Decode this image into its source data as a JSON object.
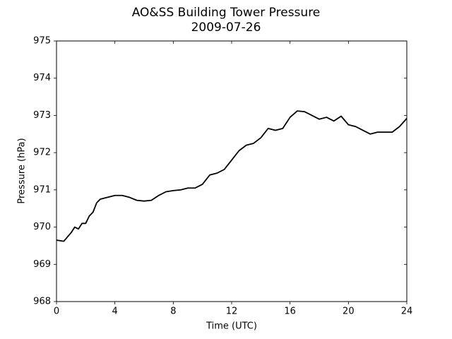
{
  "chart_data": {
    "type": "line",
    "title": "AO&SS Building Tower Pressure",
    "subtitle": "2009-07-26",
    "x_label": "Time (UTC)",
    "y_label": "Pressure (hPa)",
    "x": [
      0,
      0.5,
      1,
      1.25,
      1.5,
      1.75,
      2,
      2.25,
      2.5,
      2.75,
      3,
      3.5,
      4,
      4.5,
      5,
      5.5,
      6,
      6.5,
      7,
      7.5,
      8,
      8.5,
      9,
      9.5,
      10,
      10.5,
      11,
      11.5,
      12,
      12.5,
      13,
      13.5,
      14,
      14.5,
      15,
      15.5,
      16,
      16.5,
      17,
      17.5,
      18,
      18.5,
      19,
      19.5,
      20,
      20.5,
      21,
      21.5,
      22,
      22.5,
      23,
      23.5,
      24
    ],
    "series": [
      {
        "name": "Pressure",
        "color": "#000000",
        "values": [
          969.65,
          969.62,
          969.85,
          970.0,
          969.95,
          970.1,
          970.1,
          970.3,
          970.4,
          970.65,
          970.75,
          970.8,
          970.85,
          970.85,
          970.8,
          970.72,
          970.7,
          970.72,
          970.85,
          970.95,
          970.98,
          971.0,
          971.05,
          971.05,
          971.15,
          971.4,
          971.45,
          971.55,
          971.8,
          972.05,
          972.2,
          972.25,
          972.4,
          972.65,
          972.6,
          972.65,
          972.95,
          973.12,
          973.1,
          973.0,
          972.9,
          972.95,
          972.85,
          972.98,
          972.75,
          972.7,
          972.6,
          972.5,
          972.55,
          972.55,
          972.55,
          972.7,
          972.92
        ]
      }
    ],
    "xlim": [
      0,
      24
    ],
    "xticks": [
      0,
      4,
      8,
      12,
      16,
      20,
      24
    ],
    "ylim": [
      968,
      975
    ],
    "yticks": [
      968,
      969,
      970,
      971,
      972,
      973,
      974,
      975
    ],
    "grid": false
  }
}
